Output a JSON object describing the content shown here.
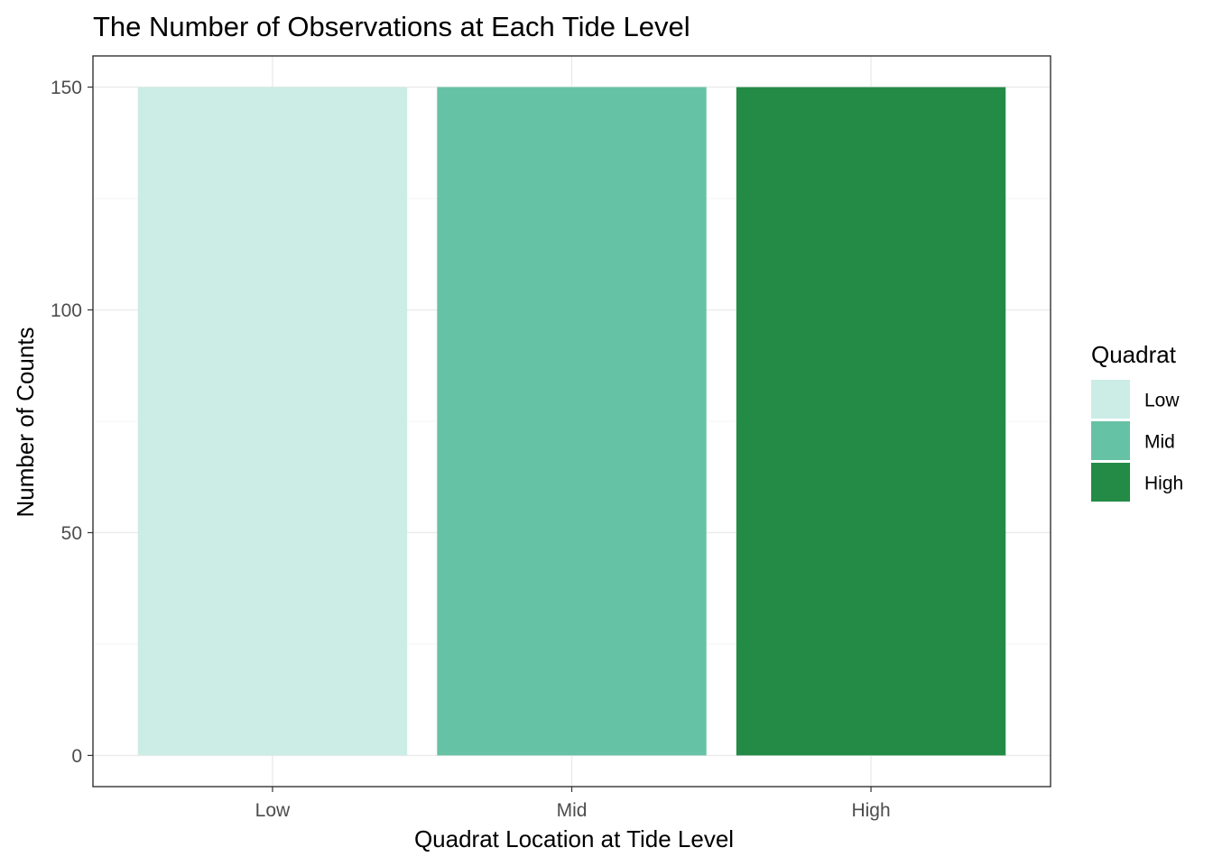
{
  "chart_data": {
    "type": "bar",
    "title": "The Number of Observations at Each Tide Level",
    "xlabel": "Quadrat Location at Tide Level",
    "ylabel": "Number of Counts",
    "categories": [
      "Low",
      "Mid",
      "High"
    ],
    "values": [
      150,
      150,
      150
    ],
    "ylim": [
      -7,
      157
    ],
    "yticks": [
      0,
      50,
      100,
      150
    ],
    "grid": true,
    "legend": {
      "title": "Quadrat",
      "position": "right",
      "entries": [
        {
          "label": "Low",
          "color": "#ccece6"
        },
        {
          "label": "Mid",
          "color": "#66c2a4"
        },
        {
          "label": "High",
          "color": "#238b45"
        }
      ]
    }
  }
}
